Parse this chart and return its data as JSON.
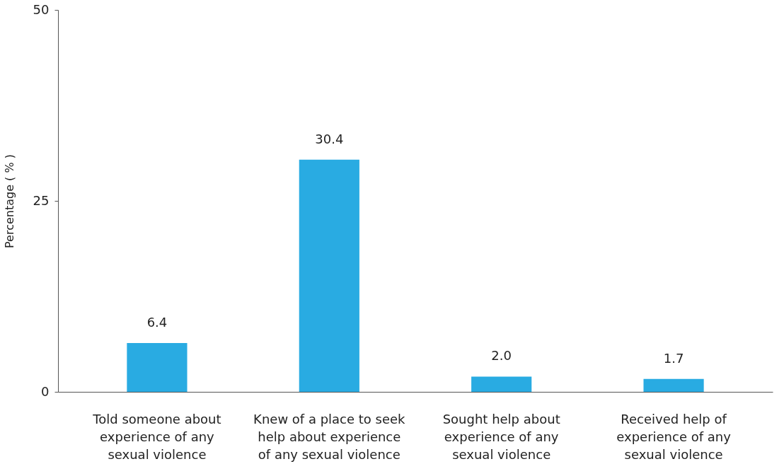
{
  "chart_data": {
    "type": "bar",
    "ylabel": "Percentage ( % )",
    "categories": [
      "Told someone about experience of any sexual violence",
      "Knew of a place to seek help about experience of any sexual violence",
      "Sought help about experience of any sexual violence",
      "Received help of experience of any sexual violence"
    ],
    "values": [
      6.4,
      30.4,
      2.0,
      1.7
    ],
    "value_labels": [
      "6.4",
      "30.4",
      "2.0",
      "1.7"
    ],
    "color": "#29abe2",
    "ylim": [
      0,
      50
    ],
    "yticks": [
      0,
      25,
      50
    ],
    "grid": false
  }
}
